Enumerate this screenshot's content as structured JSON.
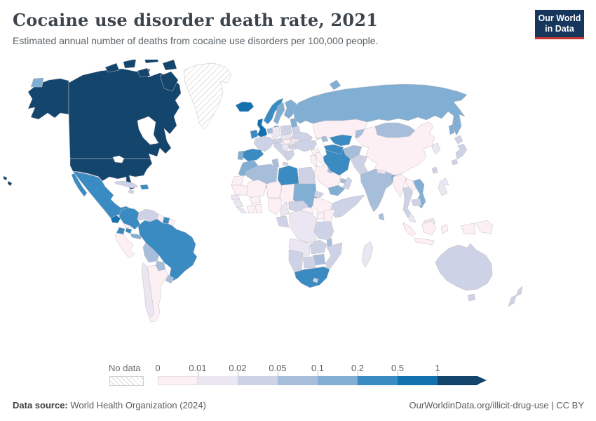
{
  "header": {
    "title": "Cocaine use disorder death rate, 2021",
    "subtitle": "Estimated annual number of deaths from cocaine use disorders per 100,000 people.",
    "logo": {
      "line1": "Our World",
      "line2": "in Data",
      "bg_color": "#16365c",
      "accent_color": "#c9352f",
      "text_color": "#ffffff"
    }
  },
  "footer": {
    "source_label": "Data source:",
    "source_value": " World Health Organization (2024)",
    "right_text": "OurWorldinData.org/illicit-drug-use | CC BY"
  },
  "chart_data": {
    "type": "choropleth",
    "title": "Cocaine use disorder death rate, 2021",
    "unit": "deaths per 100,000 people",
    "legend_position": "bottom",
    "no_data_label": "No data",
    "bins": [
      {
        "label": "0",
        "color": "#fcf0f5"
      },
      {
        "label": "0.01",
        "color": "#eae6f2"
      },
      {
        "label": "0.02",
        "color": "#cdd2e6"
      },
      {
        "label": "0.05",
        "color": "#a7bedb"
      },
      {
        "label": "0.1",
        "color": "#81aed3"
      },
      {
        "label": "0.2",
        "color": "#3a8bc2"
      },
      {
        "label": "0.5",
        "color": "#1471b0"
      },
      {
        "label": "1",
        "color": "#14456d"
      }
    ],
    "map_style": {
      "sea": "#ffffff",
      "border": "#c5bcbf",
      "hatch_line": "#d2d2d2"
    },
    "countries": {
      "united-states": 8,
      "canada": 8,
      "greenland": 0,
      "mexico": 6,
      "guatemala": 7,
      "honduras": 3,
      "nicaragua": 1,
      "costa-rica": 6,
      "panama": 5,
      "cuba": 3,
      "dominican-republic": 6,
      "jamaica": 3,
      "colombia": 6,
      "venezuela": 3,
      "guyana": 1,
      "suriname": 6,
      "french-guiana": 1,
      "ecuador": 6,
      "peru": 1,
      "brazil": 6,
      "bolivia": 4,
      "paraguay": 4,
      "chile": 2,
      "argentina": 1,
      "uruguay": 4,
      "iceland": 7,
      "ireland": 6,
      "united-kingdom": 7,
      "norway": 6,
      "sweden": 5,
      "finland": 5,
      "denmark": 6,
      "baltics": 5,
      "russia": 5,
      "belarus": 3,
      "ukraine": 3,
      "poland": 3,
      "germany": 2,
      "benelux": 4,
      "france": 3,
      "spain": 6,
      "portugal": 5,
      "italy": 3,
      "switzerland-austria": 3,
      "czechia-slovakia": 2,
      "hungary": 1,
      "romania": 2,
      "balkans": 2,
      "bulgaria": 3,
      "greece": 3,
      "turkey": 3,
      "caucasus": 4,
      "syria": 1,
      "iraq": 1,
      "israel-jordan": 1,
      "saudi-arabia": 1,
      "yemen": 5,
      "oman": 3,
      "uae": 4,
      "kuwait": 4,
      "iran": 6,
      "turkmenistan": 6,
      "uzbekistan": 6,
      "kazakhstan": 1,
      "kyrgyzstan-tajikistan": 4,
      "afghanistan": 4,
      "pakistan": 3,
      "india": 4,
      "nepal": 2,
      "bangladesh": 5,
      "sri-lanka": 4,
      "china": 1,
      "mongolia": 4,
      "korea": 2,
      "japan": 3,
      "taiwan": 3,
      "myanmar": 1,
      "laos": 1,
      "thailand": 3,
      "vietnam": 5,
      "cambodia": 3,
      "malaysia": 2,
      "indonesia": 1,
      "philippines": 2,
      "papua-new-guinea": 1,
      "australia": 3,
      "new-zealand": 3,
      "morocco": 5,
      "western-sahara": 1,
      "algeria": 4,
      "tunisia": 4,
      "libya": 6,
      "egypt": 3,
      "mauritania": 1,
      "mali": 1,
      "niger": 1,
      "chad": 1,
      "sudan": 5,
      "south-sudan": 1,
      "eritrea": 3,
      "ethiopia": 1,
      "somalia": 3,
      "senegal": 2,
      "guinea": 2,
      "sierra-leone-liberia": 2,
      "cote-divoire": 1,
      "ghana": 1,
      "burkina-faso": 1,
      "nigeria": 1,
      "cameroon": 2,
      "central-african-republic": 3,
      "gabon-congo": 3,
      "dr-congo": 2,
      "uganda": 1,
      "kenya": 1,
      "tanzania": 3,
      "angola": 2,
      "zambia": 3,
      "malawi": 4,
      "mozambique": 3,
      "zimbabwe": 4,
      "botswana": 3,
      "namibia": 3,
      "south-africa": 6,
      "lesotho": 3,
      "madagascar": 2
    }
  }
}
